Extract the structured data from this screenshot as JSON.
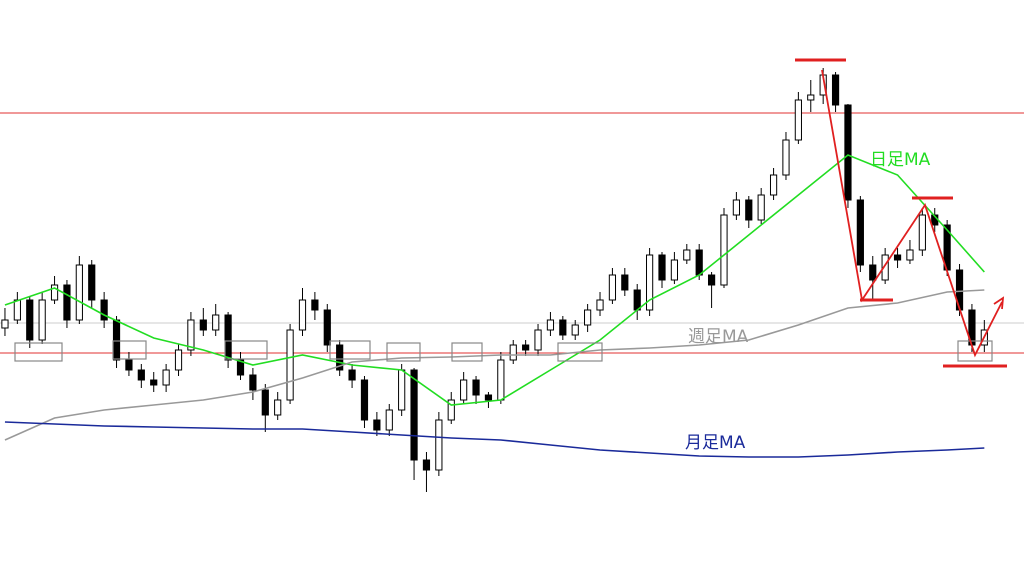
{
  "chart_data": {
    "type": "candlestick",
    "xlim": [
      -0.4,
      82.2
    ],
    "ylim": [
      0,
      130
    ],
    "up_color": "#ffffff",
    "down_color": "#000000",
    "ohlc": [
      [
        48,
        53,
        46,
        50
      ],
      [
        50,
        57,
        49,
        55
      ],
      [
        55,
        56,
        43,
        45
      ],
      [
        45,
        57,
        44,
        55
      ],
      [
        55,
        61,
        54,
        58.75
      ],
      [
        58.75,
        60,
        48,
        50
      ],
      [
        50,
        66,
        49,
        63.75
      ],
      [
        63.75,
        65,
        53,
        55
      ],
      [
        55,
        57,
        48,
        50
      ],
      [
        50,
        51,
        38,
        40
      ],
      [
        40,
        42,
        36,
        37.5
      ],
      [
        37.5,
        39,
        33,
        35
      ],
      [
        35,
        37,
        32,
        33.75
      ],
      [
        33.75,
        39,
        32,
        37.5
      ],
      [
        37.5,
        44,
        36,
        42.5
      ],
      [
        42.5,
        52,
        41,
        50
      ],
      [
        50,
        53,
        46,
        47.5
      ],
      [
        47.5,
        54,
        46,
        51.25
      ],
      [
        51.25,
        52,
        38,
        40
      ],
      [
        40,
        42,
        35,
        36.25
      ],
      [
        36.25,
        38,
        30,
        32.5
      ],
      [
        32.5,
        34,
        22,
        26.25
      ],
      [
        26.25,
        32,
        25,
        30
      ],
      [
        30,
        49,
        29,
        47.5
      ],
      [
        47.5,
        58,
        46,
        55
      ],
      [
        55,
        57,
        50,
        52.5
      ],
      [
        52.5,
        54,
        42,
        43.75
      ],
      [
        43.75,
        45,
        36,
        37.5
      ],
      [
        37.5,
        39,
        33,
        35
      ],
      [
        35,
        36,
        23,
        25
      ],
      [
        25,
        27,
        21,
        22.5
      ],
      [
        22.5,
        29,
        21,
        27.5
      ],
      [
        27.5,
        39,
        26,
        37.5
      ],
      [
        37.5,
        38,
        10,
        15
      ],
      [
        15,
        17,
        7,
        12.5
      ],
      [
        12.5,
        27,
        11,
        25
      ],
      [
        25,
        32,
        24,
        30
      ],
      [
        30,
        37,
        29,
        35
      ],
      [
        35,
        36,
        29,
        31.25
      ],
      [
        31.25,
        32,
        28,
        30
      ],
      [
        30,
        42,
        29,
        40
      ],
      [
        40,
        45,
        39,
        43.75
      ],
      [
        43.75,
        45,
        41,
        42.5
      ],
      [
        42.5,
        49,
        41,
        47.5
      ],
      [
        47.5,
        52,
        46,
        50
      ],
      [
        50,
        51,
        45,
        46.25
      ],
      [
        46.25,
        50,
        45,
        48.75
      ],
      [
        48.75,
        54,
        47,
        52.5
      ],
      [
        52.5,
        57,
        51,
        55
      ],
      [
        55,
        63,
        54,
        61.25
      ],
      [
        61.25,
        63,
        56,
        57.5
      ],
      [
        57.5,
        59,
        50,
        52.5
      ],
      [
        52.5,
        68,
        51,
        66.25
      ],
      [
        66.25,
        67,
        58,
        60
      ],
      [
        60,
        67,
        59,
        65
      ],
      [
        65,
        69,
        64,
        67.5
      ],
      [
        67.5,
        69,
        60,
        61.25
      ],
      [
        61.25,
        62,
        53,
        58.75
      ],
      [
        58.75,
        78,
        58,
        76.25
      ],
      [
        76.25,
        82,
        75,
        80
      ],
      [
        80,
        81,
        73,
        75
      ],
      [
        75,
        83,
        74,
        81.25
      ],
      [
        81.25,
        88,
        80,
        86.25
      ],
      [
        86.25,
        97,
        85,
        95
      ],
      [
        95,
        107,
        94,
        105
      ],
      [
        105,
        110,
        102,
        106.25
      ],
      [
        106.25,
        113,
        104,
        111.25
      ],
      [
        111.25,
        112,
        102,
        103.75
      ],
      [
        103.75,
        104,
        78,
        80
      ],
      [
        80,
        81,
        62,
        63.75
      ],
      [
        63.75,
        66,
        55,
        60
      ],
      [
        60,
        68,
        59,
        66.25
      ],
      [
        66.25,
        68,
        63,
        65
      ],
      [
        65,
        70,
        64,
        67.5
      ],
      [
        67.5,
        78,
        66,
        76.25
      ],
      [
        76.25,
        78,
        72,
        73.75
      ],
      [
        73.75,
        75,
        61,
        62.5
      ],
      [
        62.5,
        64,
        51,
        52.5
      ],
      [
        52.5,
        54,
        42,
        43.75
      ],
      [
        43.75,
        50,
        42,
        47.5
      ]
    ],
    "lines": [
      {
        "name": "日足MA",
        "color": "#22dd22",
        "x": [
          0,
          4,
          8,
          12,
          16,
          20,
          24,
          28,
          32,
          36,
          40,
          44,
          48,
          52,
          56,
          60,
          64,
          68,
          72,
          76,
          79
        ],
        "values": [
          53.75,
          58,
          51.25,
          45.5,
          42.5,
          38.75,
          41.25,
          38.75,
          37.5,
          28.75,
          30,
          37.5,
          45,
          55,
          61.25,
          71.25,
          81.25,
          91.25,
          86.25,
          72.5,
          62
        ]
      },
      {
        "name": "週足MA",
        "color": "#999999",
        "x": [
          0,
          4,
          8,
          12,
          16,
          20,
          24,
          28,
          32,
          36,
          40,
          44,
          48,
          52,
          56,
          60,
          64,
          68,
          72,
          76,
          79
        ],
        "values": [
          20,
          25.5,
          27.5,
          28.75,
          30,
          32,
          35.5,
          39.5,
          40.5,
          40.75,
          41.25,
          41.25,
          42.5,
          43,
          43.75,
          45,
          48.75,
          53,
          54.25,
          57,
          57.5
        ]
      },
      {
        "name": "月足MA",
        "color": "#1a2a9a",
        "x": [
          0,
          4,
          8,
          12,
          16,
          20,
          24,
          28,
          32,
          36,
          40,
          44,
          48,
          52,
          56,
          60,
          64,
          68,
          72,
          76,
          79
        ],
        "values": [
          24.5,
          24,
          23.5,
          23.25,
          23,
          22.75,
          22.75,
          22,
          21.25,
          20.5,
          20,
          18.75,
          17.5,
          16.75,
          16,
          15.75,
          15.75,
          16.25,
          17,
          17.5,
          18
        ]
      }
    ],
    "hlines": [
      {
        "value": 101.75,
        "color": "#e03030"
      },
      {
        "value": 49.25,
        "color": "#cccccc"
      },
      {
        "value": 41.75,
        "color": "#e03030"
      }
    ]
  }
}
